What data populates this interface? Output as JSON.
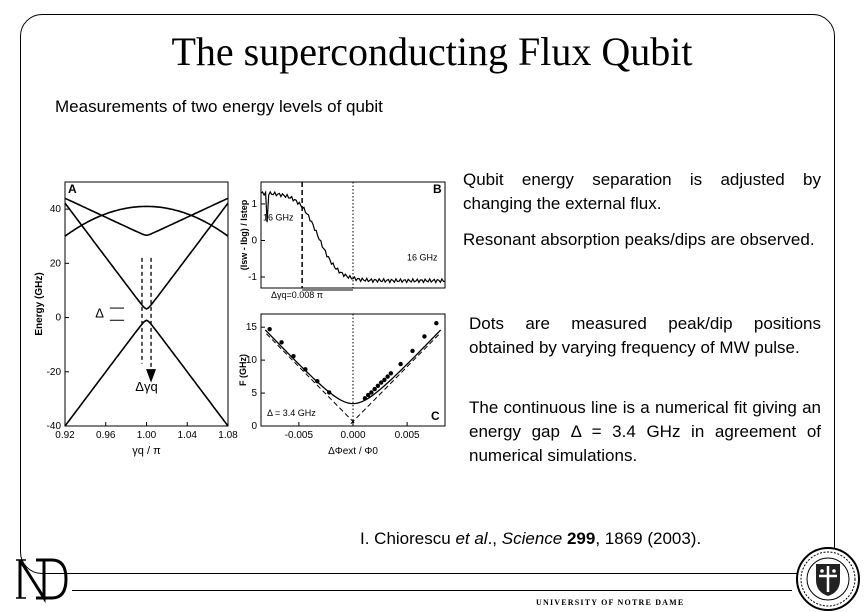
{
  "slide": {
    "title": "The superconducting Flux Qubit",
    "subtitle": "Measurements of two energy levels of qubit",
    "paragraphs": [
      "Qubit energy separation is adjusted by changing the external flux.",
      "Resonant absorption peaks/dips are observed.",
      "Dots are measured peak/dip positions obtained by varying frequency of MW pulse.",
      "The continuous line is a numerical fit giving an energy gap Δ = 3.4 GHz in agreement of numerical simulations."
    ],
    "citation": {
      "authors": "I. Chiorescu ",
      "etal": "et al",
      "mid": "., ",
      "journal": "Science",
      "space": " ",
      "volume": "299",
      "rest": ", 1869 (2003)."
    },
    "footer": "UNIVERSITY OF NOTRE DAME"
  },
  "chart_data": [
    {
      "type": "line",
      "panel": "A",
      "xlabel": "γq / π",
      "ylabel": "Energy (GHz)",
      "xlim": [
        0.92,
        1.08
      ],
      "ylim": [
        -40,
        50
      ],
      "xticks": [
        "0.92",
        "0.96",
        "1.00",
        "1.04",
        "1.08"
      ],
      "yticks": [
        "40",
        "20",
        "0",
        "-20",
        "-40"
      ],
      "annotations": [
        "Δ",
        "Δγq"
      ],
      "series": [
        {
          "x": [
            0.92,
            0.96,
            1.0,
            1.04,
            1.08
          ],
          "y": [
            30,
            37,
            41,
            37,
            30
          ]
        },
        {
          "x": [
            0.92,
            0.96,
            1.0,
            1.04,
            1.08
          ],
          "y": [
            -40,
            -20,
            0,
            -20,
            -40
          ]
        },
        {
          "x": [
            0.92,
            0.96,
            1.0,
            1.04,
            1.08
          ],
          "y": [
            40,
            21,
            3,
            21,
            40
          ]
        },
        {
          "x": [
            0.92,
            0.96,
            1.0,
            1.04,
            1.08
          ],
          "y": [
            43,
            38,
            32,
            38,
            43
          ]
        }
      ]
    },
    {
      "type": "line",
      "panel": "B",
      "ylabel": "(Isw - Ibg) / Istep",
      "yticks": [
        "1",
        "0",
        "-1"
      ],
      "ylim": [
        -1.3,
        1.6
      ],
      "annotations": [
        "16 GHz",
        "16 GHz",
        "Δγq=0.008 π"
      ],
      "series": [
        {
          "x": [
            -0.008,
            -0.006,
            -0.004,
            -0.002,
            0,
            0.002,
            0.004,
            0.006,
            0.008
          ],
          "y": [
            1.3,
            1.1,
            0.6,
            -0.6,
            -0.9,
            -1.0,
            -1.05,
            -1.1,
            -1.1
          ]
        }
      ]
    },
    {
      "type": "scatter",
      "panel": "C",
      "xlabel": "ΔΦext / Φ0",
      "ylabel": "F (GHz)",
      "xlim": [
        -0.0085,
        0.0085
      ],
      "ylim": [
        0,
        17
      ],
      "xticks": [
        "-0.005",
        "0.000",
        "0.005"
      ],
      "yticks": [
        "15",
        "10",
        "5",
        "0"
      ],
      "annotations": [
        "Δ = 3.4 GHz"
      ],
      "fit": {
        "gap": 3.4
      },
      "points": {
        "x": [
          -0.0077,
          -0.0066,
          -0.0055,
          -0.0044,
          -0.0033,
          -0.0022,
          0.0011,
          0.0014,
          0.0017,
          0.002,
          0.0023,
          0.0026,
          0.0029,
          0.0032,
          0.0035,
          0.0044,
          0.0055,
          0.0066,
          0.0077
        ],
        "y": [
          14.7,
          12.7,
          10.6,
          8.6,
          6.8,
          5.1,
          4.2,
          4.7,
          5.1,
          5.6,
          6.1,
          6.6,
          7.0,
          7.5,
          8.0,
          9.4,
          11.4,
          13.6,
          15.6
        ]
      }
    }
  ]
}
